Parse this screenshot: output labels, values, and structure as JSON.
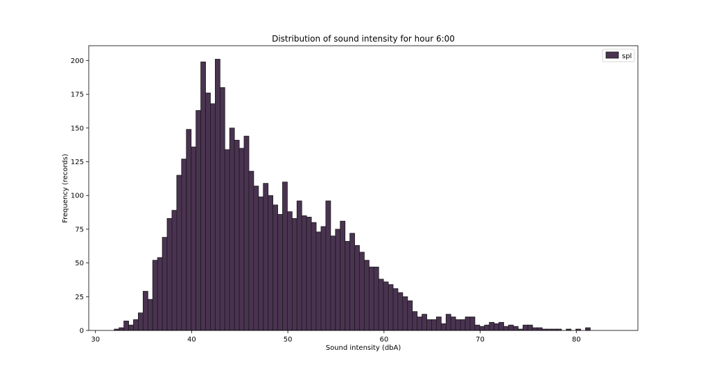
{
  "chart_data": {
    "type": "bar",
    "subtype": "histogram",
    "title": "Distribution of sound intensity for hour 6:00",
    "xlabel": "Sound intensity (dbA)",
    "ylabel": "Frequency (records)",
    "xlim": [
      29.3,
      86.4
    ],
    "ylim": [
      0,
      211
    ],
    "xticks": [
      30,
      40,
      50,
      60,
      70,
      80
    ],
    "xtick_labels": [
      "30",
      "40",
      "50",
      "60",
      "70",
      "80"
    ],
    "yticks": [
      0,
      25,
      50,
      75,
      100,
      125,
      150,
      175,
      200
    ],
    "ytick_labels": [
      "0",
      "25",
      "50",
      "75",
      "100",
      "125",
      "150",
      "175",
      "200"
    ],
    "grid": false,
    "legend": {
      "position": "top-right",
      "entries": [
        "spl"
      ]
    },
    "colors": {
      "bar_fill": "#4a3351",
      "bar_edge": "#1a1a1a"
    },
    "series": [
      {
        "name": "spl",
        "bin_start": 31.95,
        "bin_width": 0.5,
        "values": [
          1,
          2,
          7,
          4,
          8,
          13,
          29,
          23,
          52,
          54,
          69,
          83,
          89,
          115,
          127,
          149,
          136,
          163,
          199,
          176,
          168,
          201,
          180,
          134,
          150,
          141,
          135,
          144,
          118,
          107,
          99,
          109,
          100,
          93,
          86,
          110,
          88,
          83,
          96,
          85,
          84,
          80,
          73,
          77,
          96,
          70,
          75,
          81,
          66,
          72,
          63,
          58,
          52,
          47,
          47,
          38,
          36,
          34,
          31,
          28,
          25,
          22,
          14,
          10,
          12,
          8,
          8,
          10,
          5,
          12,
          10,
          8,
          8,
          10,
          10,
          4,
          3,
          4,
          6,
          5,
          6,
          3,
          4,
          3,
          1,
          4,
          4,
          2,
          2,
          1,
          1,
          1,
          1,
          0,
          1,
          0,
          1,
          0,
          2
        ]
      }
    ]
  }
}
